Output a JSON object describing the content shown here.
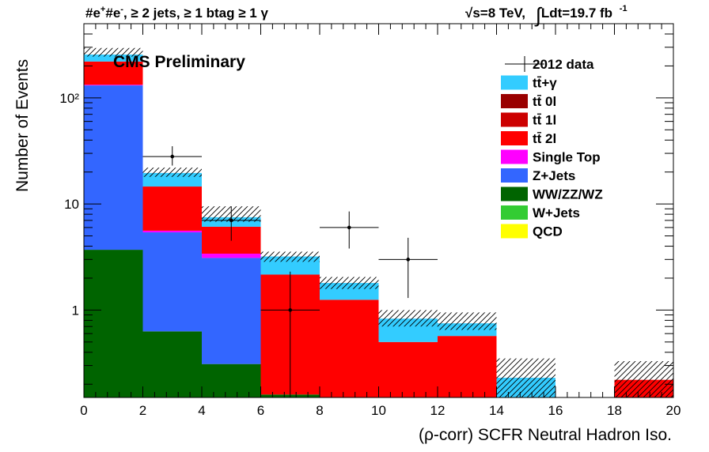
{
  "chart_data": {
    "type": "bar",
    "stacked": true,
    "log_y": true,
    "title_left_parts": [
      "#e",
      "+",
      "#e",
      "-",
      ", ≥ 2 jets, ≥ 1 btag ≥ 1 γ"
    ],
    "title_right_parts": [
      "√s=8 TeV,",
      "∫",
      "Ldt=19.7 fb",
      "-1"
    ],
    "cms_label": "CMS Preliminary",
    "xlabel": "(ρ-corr) SCFR Neutral Hadron Iso.",
    "ylabel": "Number of Events",
    "xlim": [
      0,
      20
    ],
    "ylim": [
      0.15,
      500
    ],
    "x_ticks": [
      0,
      2,
      4,
      6,
      8,
      10,
      12,
      14,
      16,
      18,
      20
    ],
    "x_tick_labels": [
      "0",
      "2",
      "4",
      "6",
      "8",
      "10",
      "12",
      "14",
      "16",
      "18",
      "20"
    ],
    "y_ticks": [
      1,
      10,
      100
    ],
    "y_tick_labels": [
      "1",
      "10",
      "10²"
    ],
    "bin_edges": [
      0,
      2,
      4,
      6,
      8,
      10,
      12,
      14,
      16,
      18,
      20
    ],
    "series": [
      {
        "name": "QCD",
        "color": "#ffff00",
        "values": [
          0,
          0,
          0,
          0,
          0,
          0,
          0,
          0,
          0,
          0
        ]
      },
      {
        "name": "W+Jets",
        "color": "#33cc33",
        "values": [
          0,
          0,
          0,
          0,
          0,
          0,
          0,
          0,
          0,
          0
        ]
      },
      {
        "name": "WW/ZZ/WZ",
        "color": "#006400",
        "values": [
          3.7,
          0.63,
          0.31,
          0.16,
          0,
          0,
          0,
          0,
          0,
          0
        ]
      },
      {
        "name": "Z+Jets",
        "color": "#3366ff",
        "values": [
          127.3,
          4.77,
          2.79,
          0,
          0,
          0,
          0,
          0,
          0,
          0
        ]
      },
      {
        "name": "Single Top",
        "color": "#ff00ff",
        "values": [
          2.0,
          0.2,
          0.3,
          0,
          0,
          0,
          0,
          0,
          0,
          0
        ]
      },
      {
        "name": "tt̄ 2l",
        "color": "#ff0000",
        "values": [
          87.0,
          9.0,
          2.7,
          2.0,
          1.25,
          0.5,
          0.57,
          0,
          0,
          0.22
        ]
      },
      {
        "name": "tt̄ 1l",
        "color": "#cc0000",
        "values": [
          0,
          0,
          0,
          0,
          0,
          0,
          0,
          0,
          0,
          0
        ]
      },
      {
        "name": "tt̄ 0l",
        "color": "#990000",
        "values": [
          0,
          0,
          0,
          0,
          0,
          0,
          0,
          0,
          0,
          0
        ]
      },
      {
        "name": "tt̄+γ",
        "color": "#33ccff",
        "values": [
          36.0,
          5.0,
          1.4,
          1.04,
          0.55,
          0.33,
          0.18,
          0.23,
          0,
          0
        ]
      }
    ],
    "data_name": "2012 data",
    "data": {
      "x": [
        3,
        5,
        7,
        9,
        11
      ],
      "y": [
        28,
        7,
        1,
        6,
        3
      ],
      "y_low": [
        23,
        4.5,
        0.15,
        3.8,
        1.3
      ],
      "y_high": [
        35,
        9.5,
        2.3,
        8.5,
        4.8
      ]
    },
    "uncertainty_band": {
      "low": [
        245,
        18,
        6.8,
        2.85,
        1.58,
        0.7,
        0.65,
        0.15,
        null,
        0.15
      ],
      "high": [
        295,
        22,
        9.5,
        3.55,
        2.05,
        1.0,
        0.95,
        0.35,
        null,
        0.33
      ]
    },
    "legend_order": [
      "2012 data",
      "tt̄+γ",
      "tt̄ 0l",
      "tt̄ 1l",
      "tt̄ 2l",
      "Single Top",
      "Z+Jets",
      "WW/ZZ/WZ",
      "W+Jets",
      "QCD"
    ],
    "legend_position": "top-right",
    "grid": false
  }
}
